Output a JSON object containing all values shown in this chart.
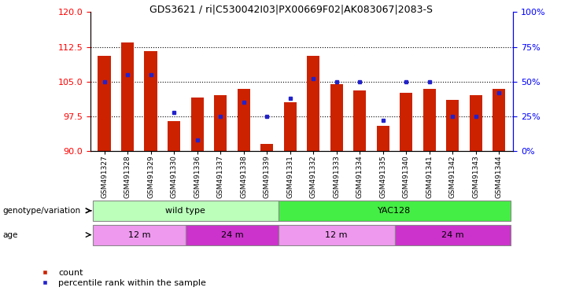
{
  "title": "GDS3621 / ri|C530042I03|PX00669F02|AK083067|2083-S",
  "samples": [
    "GSM491327",
    "GSM491328",
    "GSM491329",
    "GSM491330",
    "GSM491336",
    "GSM491337",
    "GSM491338",
    "GSM491339",
    "GSM491331",
    "GSM491332",
    "GSM491333",
    "GSM491334",
    "GSM491335",
    "GSM491340",
    "GSM491341",
    "GSM491342",
    "GSM491343",
    "GSM491344"
  ],
  "bar_values": [
    110.5,
    113.5,
    111.5,
    96.5,
    101.5,
    102.0,
    103.5,
    91.5,
    100.5,
    110.5,
    104.5,
    103.0,
    95.5,
    102.5,
    103.5,
    101.0,
    102.0,
    103.5
  ],
  "dot_percentile": [
    50,
    55,
    55,
    28,
    8,
    25,
    35,
    25,
    38,
    52,
    50,
    50,
    22,
    50,
    50,
    25,
    25,
    42
  ],
  "ylim_left": [
    90,
    120
  ],
  "ylim_right": [
    0,
    100
  ],
  "yticks_left": [
    90,
    97.5,
    105,
    112.5,
    120
  ],
  "yticks_right": [
    0,
    25,
    50,
    75,
    100
  ],
  "bar_color": "#cc2200",
  "dot_color": "#2222cc",
  "plot_bg": "#ffffff",
  "genotype_groups": [
    {
      "label": "wild type",
      "start": 0,
      "end": 8,
      "color": "#bbffbb"
    },
    {
      "label": "YAC128",
      "start": 8,
      "end": 18,
      "color": "#44ee44"
    }
  ],
  "age_groups": [
    {
      "label": "12 m",
      "start": 0,
      "end": 4,
      "color": "#ee99ee"
    },
    {
      "label": "24 m",
      "start": 4,
      "end": 8,
      "color": "#cc33cc"
    },
    {
      "label": "12 m",
      "start": 8,
      "end": 13,
      "color": "#ee99ee"
    },
    {
      "label": "24 m",
      "start": 13,
      "end": 18,
      "color": "#cc33cc"
    }
  ],
  "legend_items": [
    {
      "label": "count",
      "color": "#cc2200"
    },
    {
      "label": "percentile rank within the sample",
      "color": "#2222cc"
    }
  ]
}
